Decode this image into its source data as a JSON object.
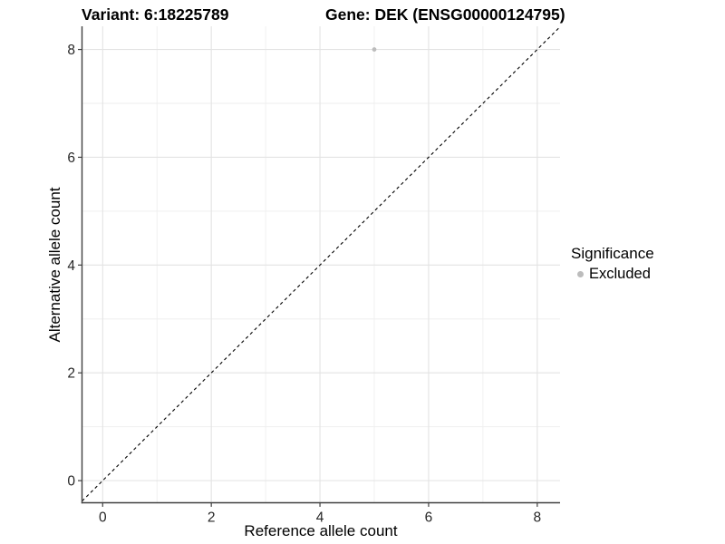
{
  "page": {
    "background": "#ffffff"
  },
  "chart_data": {
    "type": "scatter",
    "title_left": "Variant: 6:18225789",
    "title_right": "Gene: DEK (ENSG00000124795)",
    "xlabel": "Reference allele count",
    "ylabel": "Alternative allele count",
    "xlim": [
      -0.38,
      8.42
    ],
    "ylim": [
      -0.41,
      8.43
    ],
    "xticks": [
      0,
      2,
      4,
      6,
      8
    ],
    "yticks": [
      0,
      2,
      4,
      6,
      8
    ],
    "xticks_minor": [
      1,
      3,
      5,
      7
    ],
    "yticks_minor": [
      1,
      3,
      5,
      7
    ],
    "grid": "major+minor",
    "series": [
      {
        "name": "Excluded",
        "color": "#bcbcbc",
        "points": [
          {
            "x": 5,
            "y": 8
          }
        ]
      }
    ],
    "reference_line": {
      "slope": 1,
      "intercept": 0,
      "style": "dashed",
      "color": "#000000"
    },
    "legend": {
      "title": "Significance",
      "position": "right",
      "items": [
        {
          "label": "Excluded",
          "color": "#bcbcbc"
        }
      ]
    },
    "colors": {
      "grid_major": "#e3e3e3",
      "grid_minor": "#eeeeee",
      "axis_line": "#404040",
      "tick_text": "#262626",
      "title_text": "#000000",
      "point": "#bcbcbc"
    }
  }
}
